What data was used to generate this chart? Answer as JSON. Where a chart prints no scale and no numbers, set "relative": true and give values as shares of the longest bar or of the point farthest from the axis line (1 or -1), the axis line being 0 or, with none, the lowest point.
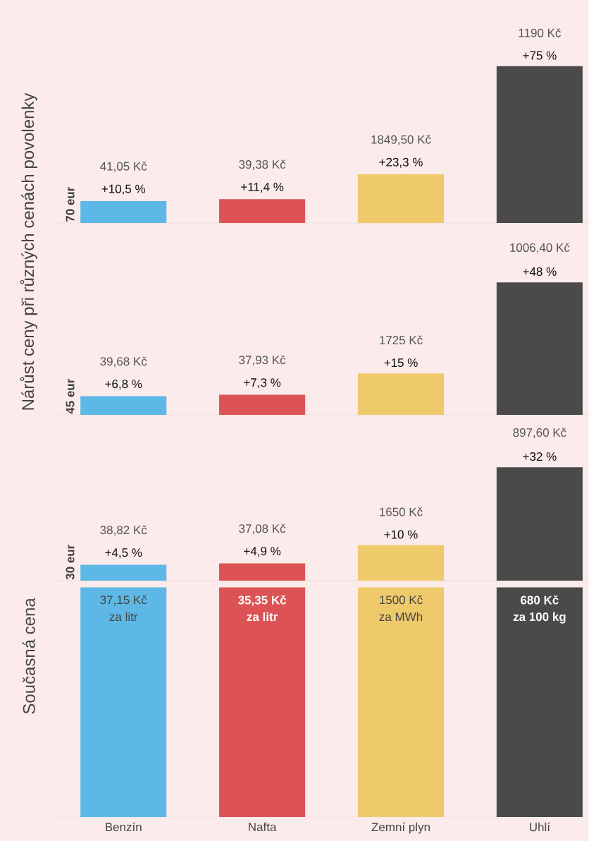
{
  "chart_data": [
    {
      "type": "bar",
      "title": "70 eur",
      "categories": [
        null,
        null,
        null,
        null
      ],
      "values": [
        10.5,
        11.4,
        23.3,
        75
      ],
      "colors": [
        "#5db8e5",
        "#dd5355",
        "#efca6b",
        "#4a4a4a"
      ],
      "value_labels": [
        "+10,5 %",
        "+11,4 %",
        "+23,3 %",
        "+75 %"
      ],
      "tick_labels": false,
      "annotations": [
        {
          "text": "41,05 Kč",
          "y": 10.5
        },
        {
          "text": "39,38 Kč",
          "y": 11.4
        },
        {
          "text": "1849,50 Kč",
          "y": 23.3
        },
        {
          "text": "1190 Kč",
          "y": 75
        }
      ]
    },
    {
      "type": "bar",
      "title": "45 eur",
      "ylabel": "Nárůst ceny při různých cenách povolenky",
      "categories": [
        null,
        null,
        null,
        null
      ],
      "values": [
        6.8,
        7.3,
        15,
        48
      ],
      "colors": [
        "#5db8e5",
        "#dd5355",
        "#efca6b",
        "#4a4a4a"
      ],
      "value_labels": [
        "+6,8 %",
        "+7,3 %",
        "+15 %",
        "+48 %"
      ],
      "tick_labels": false,
      "annotations": [
        {
          "text": "39,68 Kč",
          "y": 6.8
        },
        {
          "text": "37,93 Kč",
          "y": 7.3
        },
        {
          "text": "1725 Kč",
          "y": 15
        },
        {
          "text": "1006,40 Kč",
          "y": 48
        }
      ]
    },
    {
      "type": "bar",
      "title": "30 eur",
      "categories": [
        null,
        null,
        null,
        null
      ],
      "values": [
        4.5,
        4.9,
        10,
        32
      ],
      "colors": [
        "#5db8e5",
        "#dd5355",
        "#efca6b",
        "#4a4a4a"
      ],
      "value_labels": [
        "+4,5 %",
        "+4,9 %",
        "+10 %",
        "+32 %"
      ],
      "tick_labels": false,
      "annotations": [
        {
          "text": "38,82 Kč",
          "y": 4.5
        },
        {
          "text": "37,08 Kč",
          "y": 4.9
        },
        {
          "text": "1650 Kč",
          "y": 10
        },
        {
          "text": "897,60 Kč",
          "y": 32
        }
      ]
    },
    {
      "type": "bar",
      "ylabel": "Současná cena",
      "relative": true,
      "categories": [
        "Benzín",
        "Nafta",
        "Zemní plyn",
        "Uhlí"
      ],
      "values": [
        1,
        1,
        1,
        1
      ],
      "colors": [
        "#5db8e5",
        "#dd5355",
        "#efca6b",
        "#4a4a4a"
      ],
      "tick_labels": "x",
      "annotations": [
        "37,15 Kč",
        "za litr",
        "35,35 Kč",
        "za litr",
        "1500 Kč",
        "za MWh",
        "680 Kč",
        "za 100 kg"
      ]
    }
  ]
}
